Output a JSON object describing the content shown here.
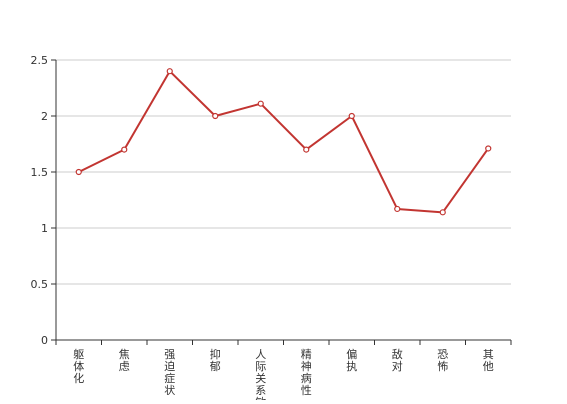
{
  "chart_data": {
    "type": "line",
    "categories": [
      "躯体化",
      "焦虑",
      "强迫症状",
      "抑郁",
      "人际关系敏感",
      "精神病性",
      "偏执",
      "敌对",
      "恐怖",
      "其他"
    ],
    "series": [
      {
        "values": [
          1.5,
          1.7,
          2.4,
          2.0,
          2.11,
          1.7,
          2.0,
          1.17,
          1.14,
          1.71
        ]
      }
    ],
    "yticks": [
      "0",
      "0.5",
      "1",
      "1.5",
      "2",
      "2.5"
    ],
    "ylim": [
      0,
      2.5
    ],
    "grid": true,
    "line_color": "#c23531"
  }
}
